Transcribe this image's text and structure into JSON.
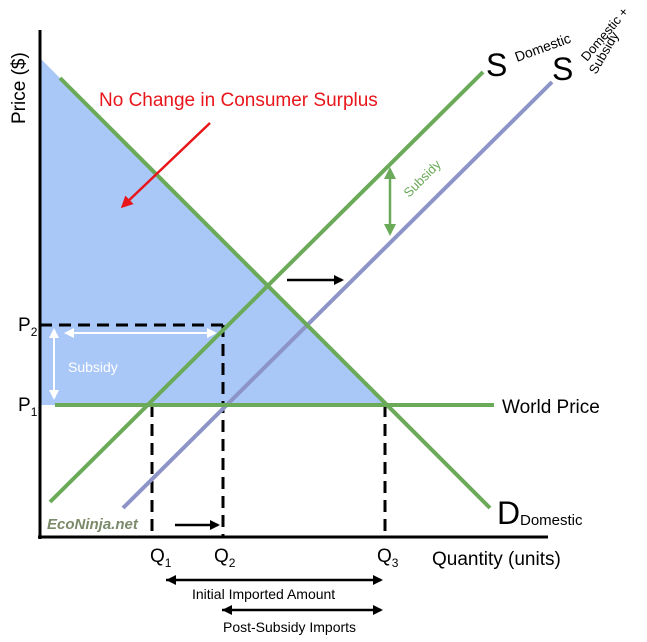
{
  "diagram": {
    "y_axis_label": "Price ($)",
    "x_axis_label": "Quantity (units)",
    "title_annotation": "No Change in Consumer Surplus",
    "supply_domestic": {
      "letter": "S",
      "subscript": "Domestic"
    },
    "supply_subsidy": {
      "letter": "S",
      "subscript_line1": "Domestic +",
      "subscript_line2": "Subsidy"
    },
    "demand": {
      "letter": "D",
      "subscript": "Domestic"
    },
    "world_price_label": "World Price",
    "subsidy_label_vertical": "Subsidy",
    "subsidy_label_horizontal": "Subsidy",
    "price_labels": {
      "p2": "P",
      "p2_sub": "2",
      "p1": "P",
      "p1_sub": "1"
    },
    "quantity_labels": {
      "q1": "Q",
      "q1_sub": "1",
      "q2": "Q",
      "q2_sub": "2",
      "q3": "Q",
      "q3_sub": "3"
    },
    "initial_imports_label": "Initial Imported Amount",
    "post_subsidy_imports_label": "Post-Subsidy Imports",
    "watermark": "EcoNinja.net",
    "colors": {
      "supply": "#6aaa58",
      "supply_subsidy": "#8c94c8",
      "consumer_surplus": "#a9c8f7",
      "annotation": "#e8161b",
      "axis": "#000000"
    }
  }
}
